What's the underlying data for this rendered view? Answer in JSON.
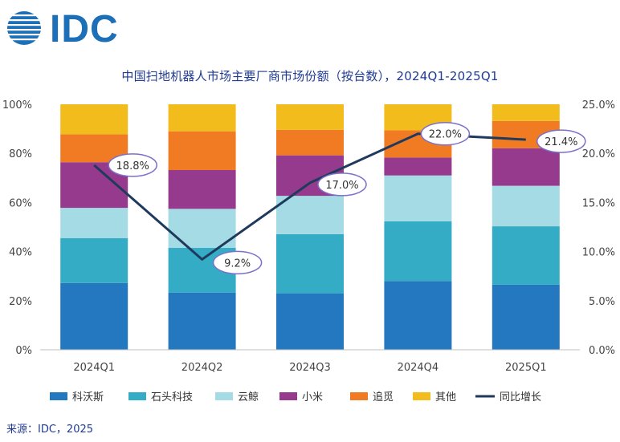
{
  "logo_text": "IDC",
  "header": {
    "title": "中国扫地机器人市场主要厂商市场份额（按台数），2024Q1-2025Q1"
  },
  "source": "来源：IDC，2025",
  "chart_data": {
    "type": "bar",
    "stacked": true,
    "categories": [
      "2024Q1",
      "2024Q2",
      "2024Q3",
      "2024Q4",
      "2025Q1"
    ],
    "series": [
      {
        "name": "科沃斯",
        "color": "#2378c0",
        "values": [
          27.2,
          23.3,
          23.0,
          28.0,
          26.5
        ]
      },
      {
        "name": "石头科技",
        "color": "#35acc6",
        "values": [
          18.3,
          18.2,
          24.1,
          24.3,
          23.8
        ]
      },
      {
        "name": "云鲸",
        "color": "#a4dbe5",
        "values": [
          12.3,
          15.9,
          15.6,
          18.7,
          16.5
        ]
      },
      {
        "name": "小米",
        "color": "#963a8e",
        "values": [
          18.6,
          15.8,
          16.5,
          7.3,
          15.3
        ]
      },
      {
        "name": "追觅",
        "color": "#f07b23",
        "values": [
          11.4,
          15.8,
          10.4,
          11.1,
          11.1
        ]
      },
      {
        "name": "其他",
        "color": "#f2bd1c",
        "values": [
          12.2,
          11.0,
          10.4,
          10.6,
          6.8
        ]
      }
    ],
    "line": {
      "name": "同比增长",
      "color": "#1f3a5c",
      "axis": "right",
      "values": [
        18.8,
        9.2,
        17.0,
        22.0,
        21.4
      ],
      "labels": [
        "18.8%",
        "9.2%",
        "17.0%",
        "22.0%",
        "21.4%"
      ]
    },
    "y_left": {
      "ylim": [
        0,
        100
      ],
      "ticks": [
        "0%",
        "20%",
        "40%",
        "60%",
        "80%",
        "100%"
      ]
    },
    "y_right": {
      "ylim": [
        0,
        25
      ],
      "ticks": [
        "0.0%",
        "5.0%",
        "10.0%",
        "15.0%",
        "20.0%",
        "25.0%"
      ]
    },
    "grid": false,
    "legend": "bottom"
  }
}
